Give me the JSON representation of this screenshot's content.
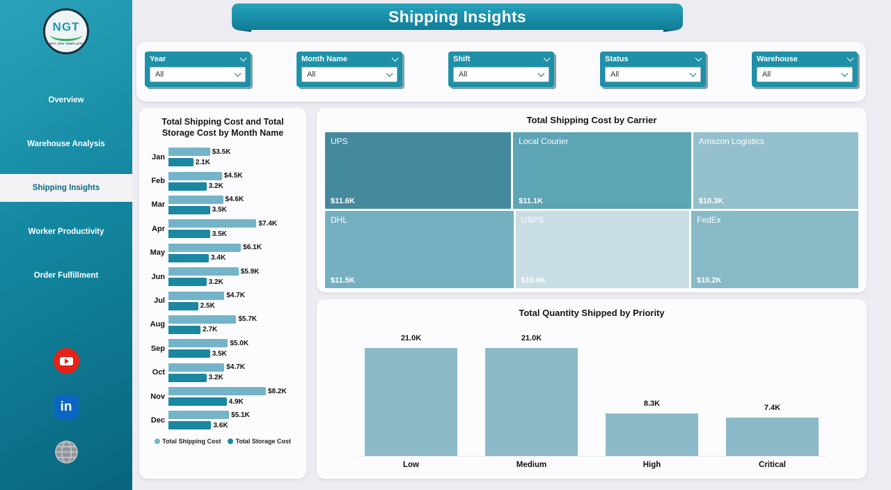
{
  "header": {
    "title": "Shipping Insights"
  },
  "sidebar": {
    "logo": {
      "text": "NGT",
      "subtext": "NEXT GEN TEMPLATES"
    },
    "items": [
      {
        "label": "Overview",
        "active": false
      },
      {
        "label": "Warehouse Analysis",
        "active": false
      },
      {
        "label": "Shipping Insights",
        "active": true
      },
      {
        "label": "Worker Productivity",
        "active": false
      },
      {
        "label": "Order Fulfillment",
        "active": false
      }
    ],
    "social_icons": [
      "youtube-icon",
      "linkedin-icon",
      "website-globe-icon"
    ],
    "linkedin_text": "in"
  },
  "filters": [
    {
      "label": "Year",
      "value": "All"
    },
    {
      "label": "Month Name",
      "value": "All"
    },
    {
      "label": "Shift",
      "value": "All"
    },
    {
      "label": "Status",
      "value": "All"
    },
    {
      "label": "Warehouse",
      "value": "All"
    }
  ],
  "colors": {
    "accent": "#13839c",
    "sidebar_teal": "#1387a0",
    "shipping_bar": "#74b4c8",
    "storage_bar": "#1b87a0",
    "priority_bar": "#8cbac9"
  },
  "chart_data": [
    {
      "type": "bar",
      "orientation": "horizontal",
      "title": "Total Shipping Cost and Total Storage Cost by Month Name",
      "categories": [
        "Jan",
        "Feb",
        "Mar",
        "Apr",
        "May",
        "Jun",
        "Jul",
        "Aug",
        "Sep",
        "Oct",
        "Nov",
        "Dec"
      ],
      "series": [
        {
          "name": "Total Shipping Cost",
          "color": "#74b4c8",
          "values": [
            3.5,
            4.5,
            4.6,
            7.4,
            6.1,
            5.9,
            4.7,
            5.7,
            5.0,
            4.7,
            8.2,
            5.1
          ],
          "labels": [
            "$3.5K",
            "$4.5K",
            "$4.6K",
            "$7.4K",
            "$6.1K",
            "$5.9K",
            "$4.7K",
            "$5.7K",
            "$5.0K",
            "$4.7K",
            "$8.2K",
            "$5.1K"
          ]
        },
        {
          "name": "Total Storage Cost",
          "color": "#1b87a0",
          "values": [
            2.1,
            3.2,
            3.5,
            3.5,
            3.4,
            3.2,
            2.5,
            2.7,
            3.5,
            3.2,
            4.9,
            3.6
          ],
          "labels": [
            "2.1K",
            "3.2K",
            "3.5K",
            "3.5K",
            "3.4K",
            "3.2K",
            "2.5K",
            "2.7K",
            "3.5K",
            "3.2K",
            "4.9K",
            "3.6K"
          ]
        }
      ],
      "legend_position": "bottom"
    },
    {
      "type": "treemap",
      "title": "Total Shipping Cost by Carrier",
      "items": [
        {
          "name": "UPS",
          "value": 11.6,
          "label": "$11.6K",
          "color": "#45899f"
        },
        {
          "name": "Local Courier",
          "value": 11.1,
          "label": "$11.1K",
          "color": "#5da4b5"
        },
        {
          "name": "Amazon Logistics",
          "value": 10.3,
          "label": "$10.3K",
          "color": "#93c0cc"
        },
        {
          "name": "DHL",
          "value": 11.5,
          "label": "$11.5K",
          "color": "#74b0c0"
        },
        {
          "name": "USPS",
          "value": 10.6,
          "label": "$10.6K",
          "color": "#c9dde4"
        },
        {
          "name": "FedEx",
          "value": 10.2,
          "label": "$10.2K",
          "color": "#88b9c6"
        }
      ],
      "rows": [
        [
          0,
          1,
          2
        ],
        [
          3,
          4,
          5
        ]
      ]
    },
    {
      "type": "bar",
      "title": "Total Quantity Shipped by Priority",
      "categories": [
        "Low",
        "Medium",
        "High",
        "Critical"
      ],
      "values": [
        21.0,
        21.0,
        8.3,
        7.4
      ],
      "labels": [
        "21.0K",
        "21.0K",
        "8.3K",
        "7.4K"
      ],
      "color": "#8cbac9",
      "ylim": [
        0,
        21
      ]
    }
  ]
}
